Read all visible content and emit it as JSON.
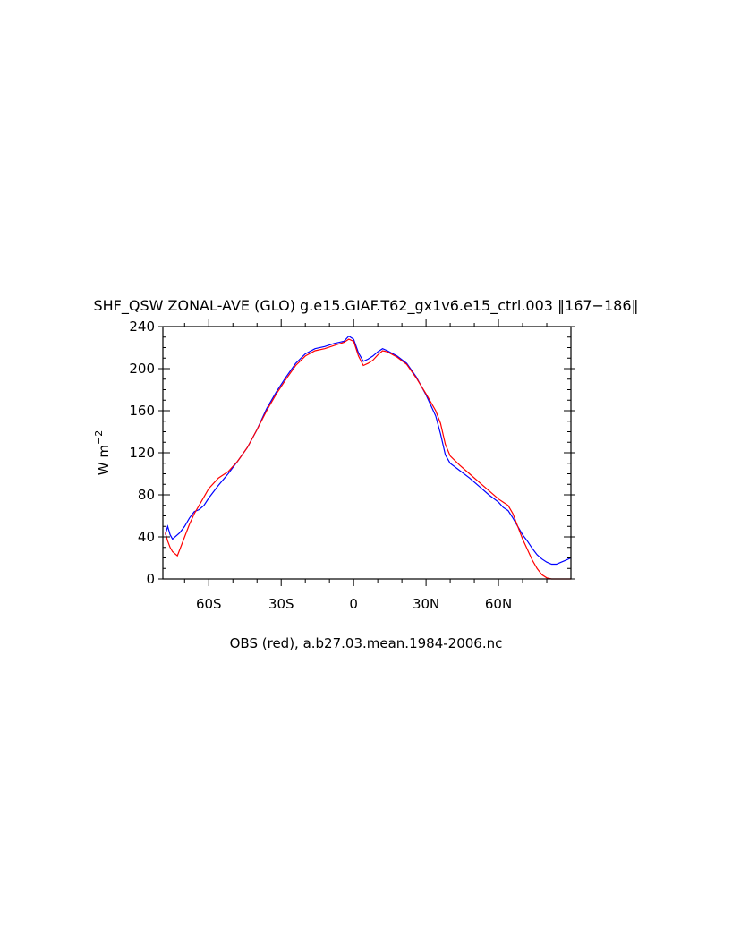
{
  "chart_data": {
    "type": "line",
    "title": "SHF_QSW ZONAL-AVE (GLO) g.e15.GIAF.T62_gx1v6.e15_ctrl.003 ‖167−186‖",
    "xlabel": "OBS (red), a.b27.03.mean.1984-2006.nc",
    "ylabel": "W m",
    "ylabel_superscript": "−2",
    "xlim": [
      -79,
      90
    ],
    "ylim": [
      0,
      240
    ],
    "grid": false,
    "legend": "none",
    "x_ticks": [
      {
        "value": -60,
        "label": "60S"
      },
      {
        "value": -30,
        "label": "30S"
      },
      {
        "value": 0,
        "label": "0"
      },
      {
        "value": 30,
        "label": "30N"
      },
      {
        "value": 60,
        "label": "60N"
      }
    ],
    "y_ticks": [
      0,
      40,
      80,
      120,
      160,
      200,
      240
    ],
    "series": [
      {
        "color": "#0000ff",
        "x": [
          -78,
          -77,
          -76,
          -75,
          -72,
          -70,
          -68,
          -66,
          -64,
          -62,
          -60,
          -56,
          -52,
          -48,
          -44,
          -40,
          -36,
          -32,
          -28,
          -24,
          -20,
          -16,
          -12,
          -8,
          -4,
          -2,
          0,
          2,
          4,
          6,
          8,
          10,
          12,
          14,
          18,
          22,
          26,
          30,
          34,
          36,
          38,
          40,
          44,
          48,
          52,
          56,
          60,
          62,
          64,
          66,
          68,
          70,
          72,
          74,
          76,
          78,
          80,
          82,
          84,
          86,
          88,
          90
        ],
        "y": [
          42,
          50,
          42,
          38,
          44,
          50,
          58,
          64,
          66,
          70,
          77,
          89,
          100,
          112,
          125,
          142,
          162,
          178,
          192,
          205,
          214,
          219,
          221,
          224,
          226,
          231,
          228,
          215,
          207,
          209,
          212,
          216,
          219,
          217,
          212,
          205,
          192,
          175,
          155,
          138,
          118,
          110,
          103,
          96,
          88,
          80,
          73,
          68,
          65,
          58,
          50,
          42,
          36,
          29,
          23,
          19,
          16,
          14,
          14,
          16,
          18,
          20
        ]
      },
      {
        "color": "#ff0000",
        "x": [
          -78,
          -77,
          -76,
          -75,
          -74,
          -73,
          -72,
          -70,
          -68,
          -66,
          -64,
          -62,
          -60,
          -56,
          -52,
          -48,
          -44,
          -40,
          -36,
          -32,
          -28,
          -24,
          -20,
          -16,
          -12,
          -8,
          -4,
          -2,
          0,
          2,
          4,
          6,
          8,
          10,
          12,
          14,
          18,
          22,
          26,
          30,
          34,
          36,
          38,
          40,
          44,
          48,
          52,
          56,
          60,
          62,
          64,
          66,
          68,
          70,
          72,
          74,
          76,
          78,
          80,
          82,
          84,
          86,
          88,
          90
        ],
        "y": [
          44,
          36,
          30,
          26,
          24,
          22,
          28,
          40,
          52,
          62,
          70,
          78,
          86,
          96,
          102,
          112,
          125,
          142,
          160,
          176,
          190,
          203,
          212,
          217,
          219,
          222,
          225,
          228,
          226,
          212,
          203,
          205,
          208,
          213,
          217,
          216,
          211,
          204,
          191,
          176,
          160,
          148,
          128,
          117,
          108,
          100,
          92,
          84,
          76,
          73,
          70,
          62,
          50,
          38,
          28,
          18,
          10,
          4,
          1,
          0,
          0,
          0,
          0,
          0
        ]
      }
    ]
  }
}
